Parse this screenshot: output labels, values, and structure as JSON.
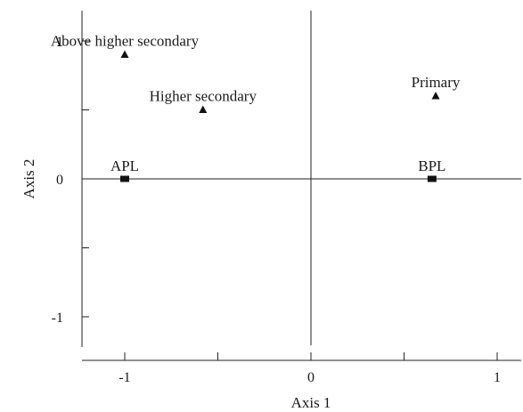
{
  "chart_data": {
    "type": "scatter",
    "xlabel": "Axis 1",
    "ylabel": "Axis 2",
    "xlim": [
      -1.2,
      1.2
    ],
    "ylim": [
      -1.25,
      1.2
    ],
    "x_ticks": [
      -1,
      -0.5,
      0,
      0.5,
      1
    ],
    "x_tick_labels": [
      "-1",
      "",
      "0",
      "",
      "1"
    ],
    "y_ticks": [
      -1,
      -0.5,
      0,
      0.5,
      1
    ],
    "y_tick_labels": [
      "-1",
      "",
      "0",
      "",
      "1"
    ],
    "reference_lines": {
      "x": 0,
      "y": 0
    },
    "grid": false,
    "series": [
      {
        "marker": "triangle",
        "points": [
          {
            "label": "Above higher secondary",
            "x": -1.0,
            "y": 0.9
          },
          {
            "label": "Higher secondary",
            "x": -0.58,
            "y": 0.5
          },
          {
            "label": "Primary",
            "x": 0.67,
            "y": 0.6
          }
        ]
      },
      {
        "marker": "square",
        "points": [
          {
            "label": "APL",
            "x": -1.0,
            "y": 0.0
          },
          {
            "label": "BPL",
            "x": 0.65,
            "y": 0.0
          }
        ]
      }
    ]
  }
}
